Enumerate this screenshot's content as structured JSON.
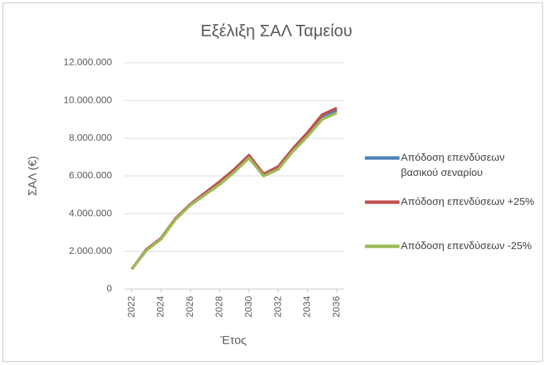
{
  "chart_data": {
    "type": "line",
    "title": "Εξέλιξη ΣΑΛ Ταμείου",
    "x_label": "Έτος",
    "y_label": "ΣΑΛ (€)",
    "x": [
      2022,
      2023,
      2024,
      2025,
      2026,
      2027,
      2028,
      2029,
      2030,
      2031,
      2032,
      2033,
      2034,
      2035,
      2036
    ],
    "xlim": [
      2021.5,
      2036.5
    ],
    "xticks": [
      2022,
      2024,
      2026,
      2028,
      2030,
      2032,
      2034,
      2036
    ],
    "ylim": [
      0,
      12000000
    ],
    "yticks": [
      0,
      {
        "value": 2000000,
        "label": "2.000.000"
      },
      {
        "value": 4000000,
        "label": "4.000.000"
      },
      {
        "value": 6000000,
        "label": "6.000.000"
      },
      {
        "value": 8000000,
        "label": "8.000.000"
      },
      {
        "value": 10000000,
        "label": "10.000.000"
      },
      {
        "value": 12000000,
        "label": "12.000.000"
      }
    ],
    "grid": true,
    "legend": "right",
    "series": [
      {
        "name": "Απόδοση επενδύσεων βασικού σεναρίου",
        "color": "#4f81bd",
        "values": [
          1050000,
          2080000,
          2680000,
          3720000,
          4480000,
          5050000,
          5620000,
          6280000,
          7020000,
          6050000,
          6420000,
          7380000,
          8200000,
          9120000,
          9480000
        ]
      },
      {
        "name": "Απόδοση επενδύσεων +25%",
        "color": "#c0504d",
        "values": [
          1050000,
          2100000,
          2700000,
          3750000,
          4500000,
          5100000,
          5700000,
          6350000,
          7100000,
          6100000,
          6500000,
          7450000,
          8300000,
          9250000,
          9600000
        ]
      },
      {
        "name": "Απόδοση επενδύσεων -25%",
        "color": "#9bbb59",
        "values": [
          1050000,
          2050000,
          2650000,
          3700000,
          4450000,
          5000000,
          5550000,
          6200000,
          6950000,
          6000000,
          6350000,
          7300000,
          8100000,
          9000000,
          9350000
        ]
      }
    ]
  }
}
